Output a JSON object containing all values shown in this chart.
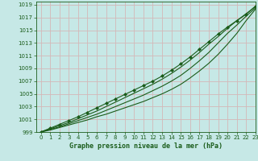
{
  "xlabel": "Graphe pression niveau de la mer (hPa)",
  "xlim": [
    -0.5,
    23
  ],
  "ylim": [
    999,
    1019.5
  ],
  "xticks": [
    0,
    1,
    2,
    3,
    4,
    5,
    6,
    7,
    8,
    9,
    10,
    11,
    12,
    13,
    14,
    15,
    16,
    17,
    18,
    19,
    20,
    21,
    22,
    23
  ],
  "yticks": [
    999,
    1001,
    1003,
    1005,
    1007,
    1009,
    1011,
    1013,
    1015,
    1017,
    1019
  ],
  "bg_color": "#c6e8e6",
  "grid_color": "#d4b8b8",
  "line_color": "#1a5c1a",
  "lines": [
    [
      999.0,
      999.3,
      999.7,
      1000.1,
      1000.5,
      1000.9,
      1001.4,
      1001.8,
      1002.3,
      1002.8,
      1003.3,
      1003.8,
      1004.4,
      1005.0,
      1005.7,
      1006.5,
      1007.5,
      1008.6,
      1009.8,
      1011.2,
      1012.8,
      1014.5,
      1016.5,
      1018.3
    ],
    [
      999.0,
      999.4,
      999.8,
      1000.3,
      1000.8,
      1001.3,
      1001.8,
      1002.4,
      1003.0,
      1003.6,
      1004.2,
      1004.8,
      1005.5,
      1006.2,
      1007.0,
      1007.9,
      1009.0,
      1010.2,
      1011.5,
      1013.0,
      1014.5,
      1015.8,
      1017.2,
      1018.5
    ],
    [
      999.0,
      999.5,
      1000.0,
      1000.5,
      1001.1,
      1001.7,
      1002.3,
      1003.0,
      1003.7,
      1004.4,
      1005.1,
      1005.8,
      1006.5,
      1007.3,
      1008.2,
      1009.2,
      1010.3,
      1011.5,
      1012.8,
      1014.0,
      1015.3,
      1016.5,
      1017.6,
      1018.7
    ],
    [
      999.0,
      999.6,
      1000.2,
      1000.8,
      1001.4,
      1002.1,
      1002.8,
      1003.5,
      1004.2,
      1004.9,
      1005.6,
      1006.3,
      1007.0,
      1007.8,
      1008.7,
      1009.7,
      1010.8,
      1012.0,
      1013.2,
      1014.4,
      1015.5,
      1016.5,
      1017.5,
      1018.8
    ]
  ],
  "marker_line_idx": 3,
  "tick_fontsize": 5.0,
  "label_fontsize": 6.0
}
